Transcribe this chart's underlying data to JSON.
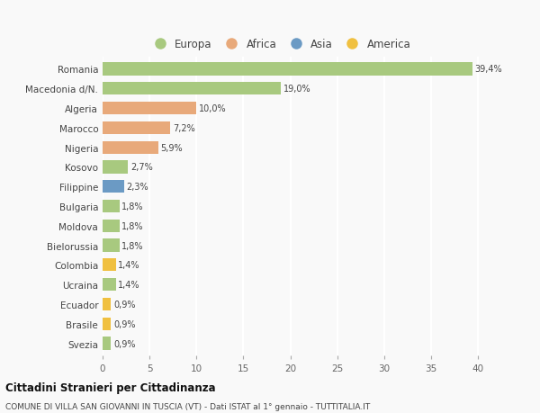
{
  "categories": [
    "Romania",
    "Macedonia d/N.",
    "Algeria",
    "Marocco",
    "Nigeria",
    "Kosovo",
    "Filippine",
    "Bulgaria",
    "Moldova",
    "Bielorussia",
    "Colombia",
    "Ucraina",
    "Ecuador",
    "Brasile",
    "Svezia"
  ],
  "values": [
    39.4,
    19.0,
    10.0,
    7.2,
    5.9,
    2.7,
    2.3,
    1.8,
    1.8,
    1.8,
    1.4,
    1.4,
    0.9,
    0.9,
    0.9
  ],
  "labels": [
    "39,4%",
    "19,0%",
    "10,0%",
    "7,2%",
    "5,9%",
    "2,7%",
    "2,3%",
    "1,8%",
    "1,8%",
    "1,8%",
    "1,4%",
    "1,4%",
    "0,9%",
    "0,9%",
    "0,9%"
  ],
  "colors": [
    "#a8c97f",
    "#a8c97f",
    "#e8a97a",
    "#e8a97a",
    "#e8a97a",
    "#a8c97f",
    "#6b9ac4",
    "#a8c97f",
    "#a8c97f",
    "#a8c97f",
    "#f0c040",
    "#a8c97f",
    "#f0c040",
    "#f0c040",
    "#a8c97f"
  ],
  "legend_labels": [
    "Europa",
    "Africa",
    "Asia",
    "America"
  ],
  "legend_colors": [
    "#a8c97f",
    "#e8a97a",
    "#6b9ac4",
    "#f0c040"
  ],
  "xlim": [
    0,
    42
  ],
  "xticks": [
    0,
    5,
    10,
    15,
    20,
    25,
    30,
    35,
    40
  ],
  "title": "Cittadini Stranieri per Cittadinanza",
  "subtitle": "COMUNE DI VILLA SAN GIOVANNI IN TUSCIA (VT) - Dati ISTAT al 1° gennaio - TUTTITALIA.IT",
  "background_color": "#f9f9f9",
  "grid_color": "#ffffff",
  "bar_height": 0.65
}
